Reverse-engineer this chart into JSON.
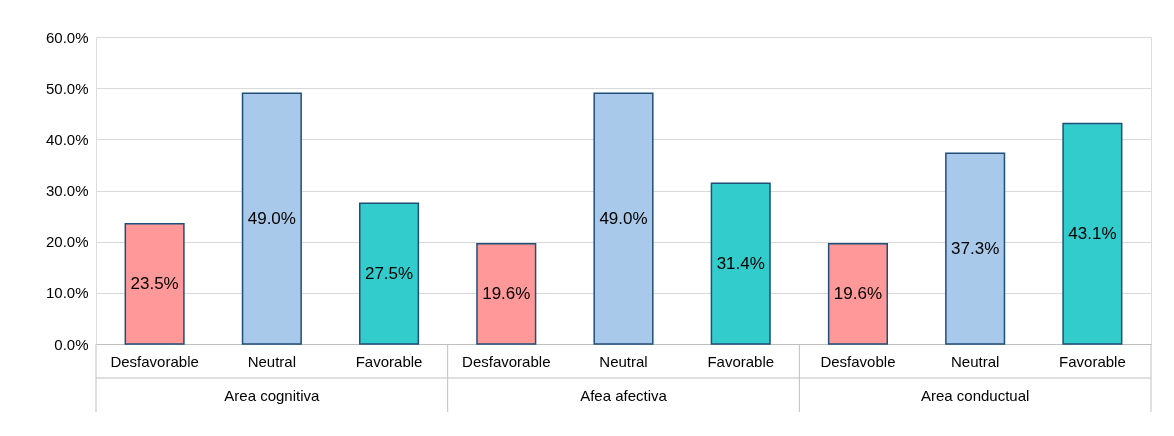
{
  "chart_data": {
    "type": "bar",
    "categories": [
      "Desfavorable",
      "Neutral",
      "Favorable",
      "Desfavorable",
      "Neutral",
      "Favorable",
      "Desfavoble",
      "Neutral",
      "Favorable"
    ],
    "values": [
      23.5,
      49.0,
      27.5,
      19.6,
      49.0,
      31.4,
      19.6,
      37.3,
      43.1
    ],
    "colors": [
      "#ff9999",
      "#a9c9ea",
      "#33cccc",
      "#ff9999",
      "#a9c9ea",
      "#33cccc",
      "#ff9999",
      "#a9c9ea",
      "#33cccc"
    ],
    "value_labels": [
      "23.5%",
      "49.0%",
      "27.5%",
      "19.6%",
      "49.0%",
      "31.4%",
      "19.6%",
      "37.3%",
      "43.1%"
    ],
    "annotations": [
      "Area cognitiva",
      "Afea afectiva",
      "Area conductual"
    ],
    "ylim": [
      0,
      60
    ],
    "yticks": [
      {
        "value": 0,
        "label": "0.0%"
      },
      {
        "value": 10,
        "label": "10.0%"
      },
      {
        "value": 20,
        "label": "20.0%"
      },
      {
        "value": 30,
        "label": "30.0%"
      },
      {
        "value": 40,
        "label": "40.0%"
      },
      {
        "value": 50,
        "label": "50.0%"
      },
      {
        "value": 60,
        "label": "60.0%"
      }
    ],
    "grid": "y"
  }
}
